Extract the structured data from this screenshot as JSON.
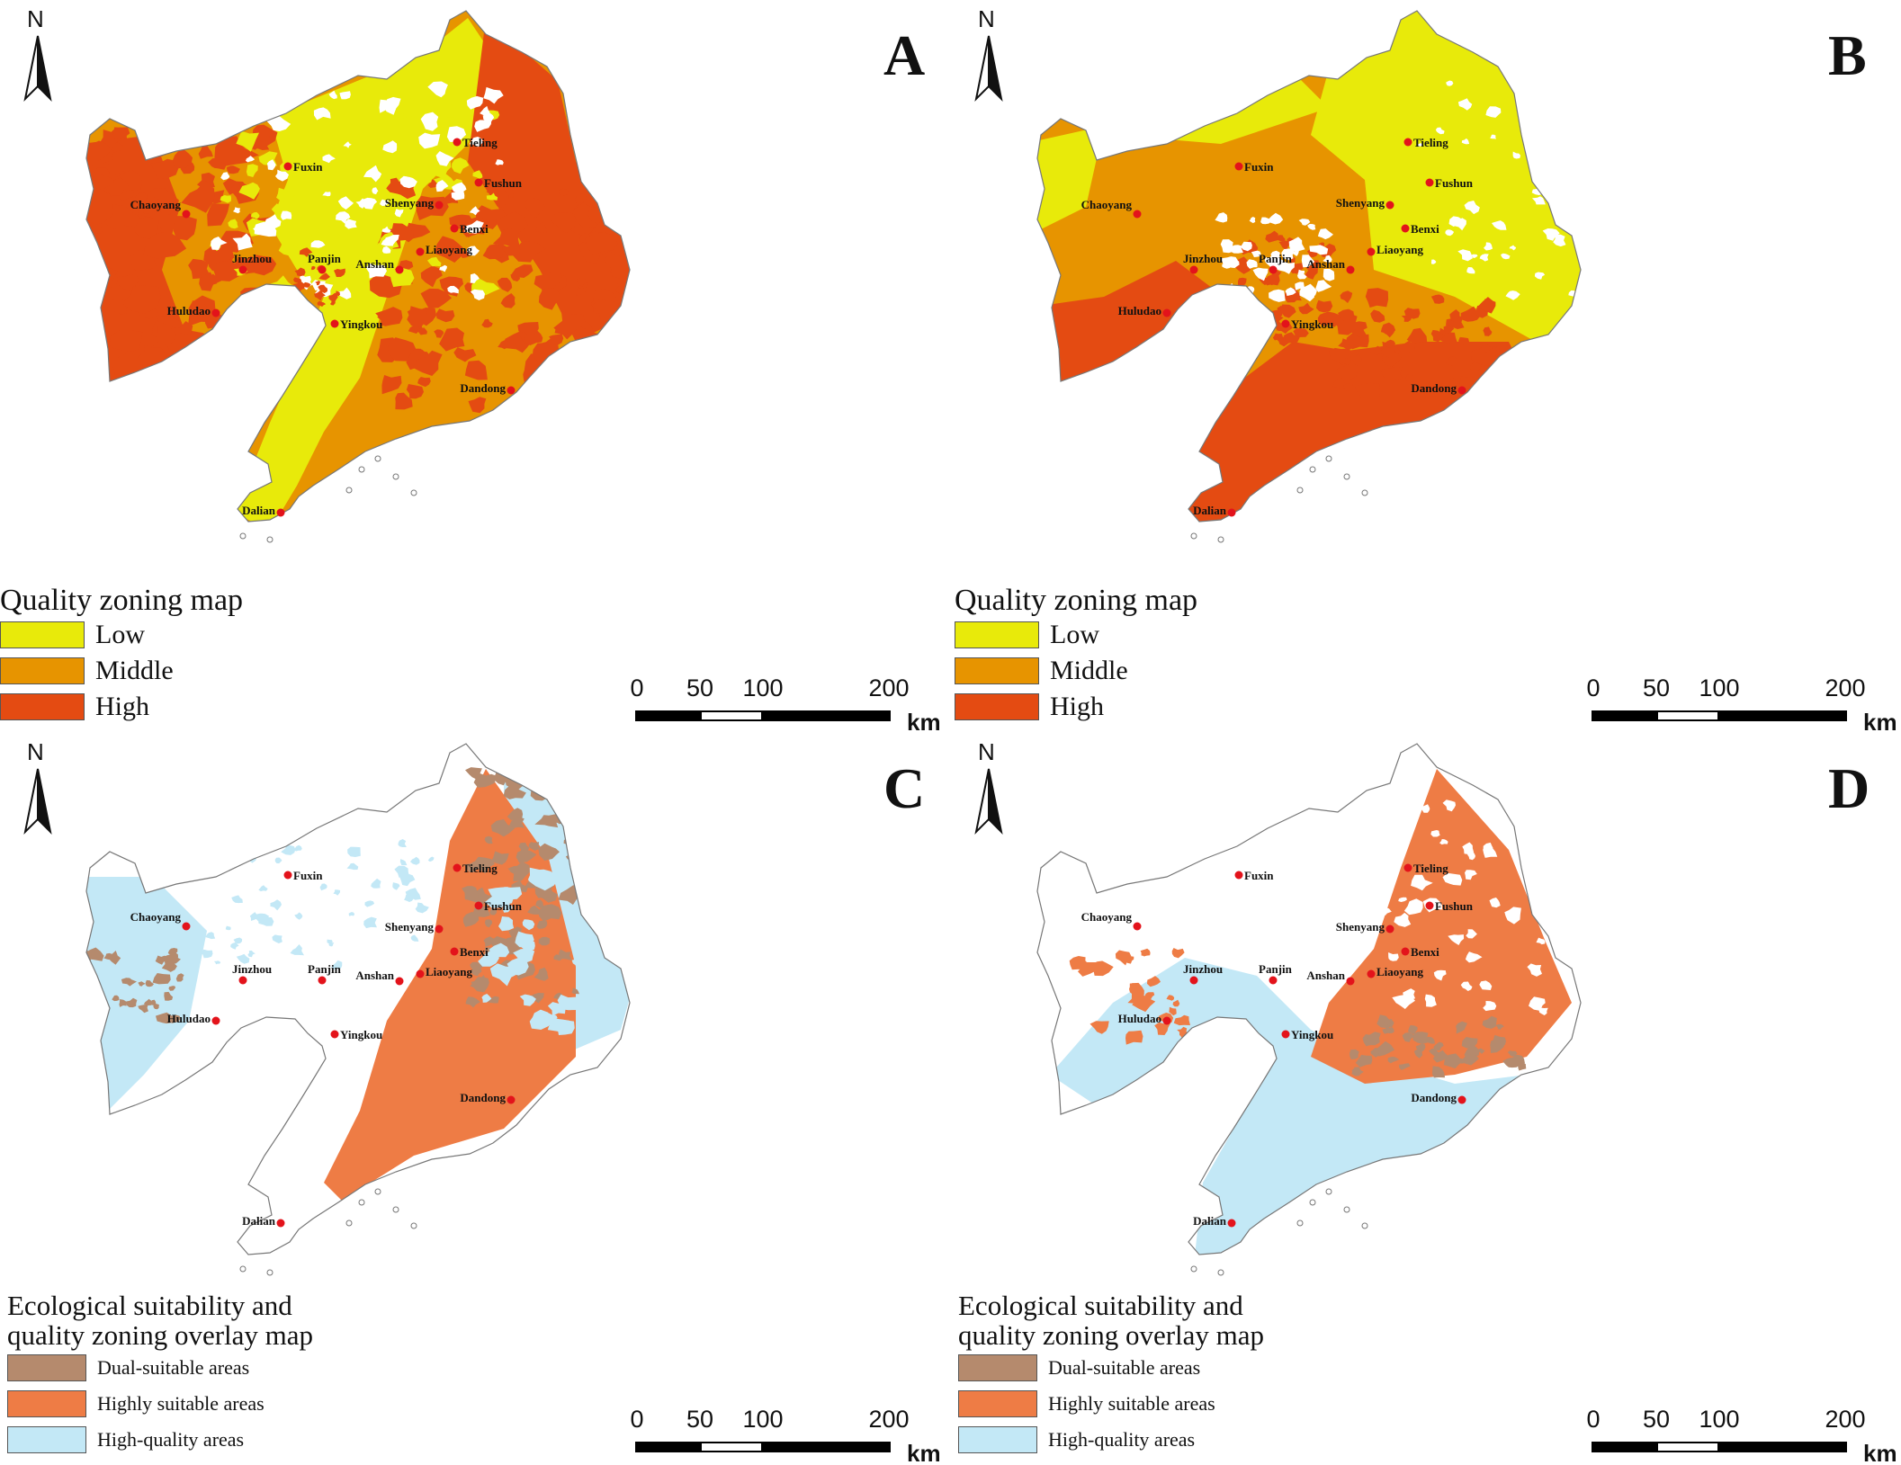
{
  "colors": {
    "low": "#e8ea0a",
    "middle": "#e79400",
    "high": "#e44b12",
    "dual_suitable": "#b58a6d",
    "highly_suitable": "#ee7c45",
    "high_quality": "#c3e8f6",
    "city_dot": "#e3131b"
  },
  "north_label": "N",
  "panels": {
    "A": {
      "letter": "A",
      "legend_title": "Quality zoning map"
    },
    "B": {
      "letter": "B",
      "legend_title": "Quality zoning map"
    },
    "C": {
      "letter": "C",
      "legend_title": "Ecological suitability and quality zoning overlay map"
    },
    "D": {
      "letter": "D",
      "legend_title": "Ecological suitability and quality zoning overlay map"
    }
  },
  "quality_legend": {
    "title": "Quality zoning map",
    "items": [
      {
        "label": "Low",
        "color_key": "low"
      },
      {
        "label": "Middle",
        "color_key": "middle"
      },
      {
        "label": "High",
        "color_key": "high"
      }
    ]
  },
  "overlay_legend": {
    "title_line1": "Ecological suitability and",
    "title_line2": "quality zoning overlay map",
    "items": [
      {
        "label": "Dual-suitable areas",
        "color_key": "dual_suitable"
      },
      {
        "label": "Highly suitable areas",
        "color_key": "highly_suitable"
      },
      {
        "label": "High-quality areas",
        "color_key": "high_quality"
      }
    ]
  },
  "scale_bar": {
    "ticks": [
      "0",
      "50",
      "100",
      "200"
    ],
    "unit": "km"
  },
  "cities": [
    "Tieling",
    "Fuxin",
    "Fushun",
    "Shenyang",
    "Chaoyang",
    "Benxi",
    "Liaoyang",
    "Jinzhou",
    "Panjin",
    "Anshan",
    "Huludao",
    "Yingkou",
    "Dandong",
    "Dalian"
  ]
}
